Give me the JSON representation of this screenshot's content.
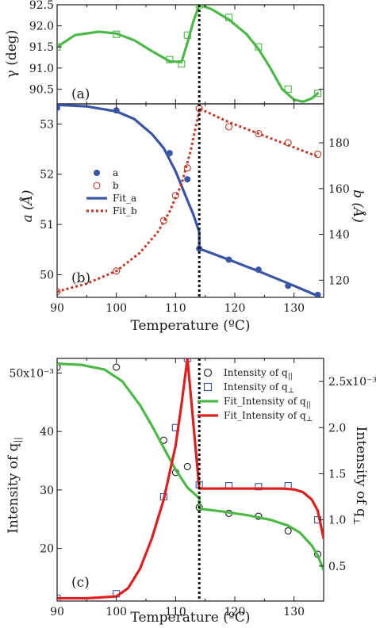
{
  "chart_data": [
    {
      "panel": "(a)",
      "type": "line",
      "xlabel": "",
      "ylabel": "γ (deg)",
      "xlim": [
        90,
        135
      ],
      "ylim": [
        90.15,
        92.5
      ],
      "yticks": [
        90.5,
        91.0,
        91.5,
        92.0,
        92.5
      ],
      "ytick_labels": [
        "90.5",
        "91.0",
        "91.5",
        "92.0",
        "92.5"
      ],
      "transition_x": 114,
      "series": [
        {
          "name": "",
          "style": "markers",
          "marker": "square-open",
          "color": "#4db848",
          "x": [
            90,
            100,
            109,
            111,
            112,
            114,
            119,
            124,
            129,
            134
          ],
          "y": [
            91.5,
            91.8,
            91.2,
            91.1,
            91.78,
            92.5,
            92.2,
            91.5,
            90.5,
            90.4
          ]
        },
        {
          "name": "",
          "style": "line",
          "color": "#4db848",
          "x": [
            90,
            93,
            97,
            100,
            103,
            106,
            109,
            111,
            112,
            113,
            114,
            116,
            119,
            122,
            124,
            126,
            128,
            130,
            131.5,
            133,
            134
          ],
          "y": [
            91.5,
            91.78,
            91.86,
            91.82,
            91.66,
            91.4,
            91.16,
            91.14,
            91.6,
            92.1,
            92.5,
            92.4,
            92.15,
            91.8,
            91.45,
            91.0,
            90.5,
            90.25,
            90.2,
            90.28,
            90.4
          ]
        }
      ]
    },
    {
      "panel": "(b)",
      "type": "line",
      "xlabel": "Temperature (ºC)",
      "ylabel": "a (Å)",
      "ylabel_right": "b (Å)",
      "xlim": [
        90,
        135
      ],
      "ylim": [
        49.55,
        53.4
      ],
      "ylim_right": [
        112.5,
        197
      ],
      "xticks": [
        90,
        100,
        110,
        120,
        130
      ],
      "xtick_labels": [
        "90",
        "100",
        "110",
        "120",
        "130"
      ],
      "yticks": [
        50,
        51,
        52,
        53
      ],
      "ytick_labels": [
        "50",
        "51",
        "52",
        "53"
      ],
      "yticks_right": [
        120,
        140,
        160,
        180
      ],
      "ytick_labels_right": [
        "120",
        "140",
        "160",
        "180"
      ],
      "transition_x": 114,
      "legend": {
        "position": "center-left",
        "entries": [
          {
            "label": "a",
            "kind": "marker-filled",
            "color": "#3a55a4"
          },
          {
            "label": "b",
            "kind": "marker-open",
            "color": "#c0392b"
          },
          {
            "label": "Fit_a",
            "kind": "line-solid",
            "color": "#3a55a4"
          },
          {
            "label": "Fit_b",
            "kind": "line-dotted",
            "color": "#c0392b"
          }
        ]
      },
      "series": [
        {
          "name": "a",
          "axis": "left",
          "style": "markers",
          "marker": "circle-filled",
          "color": "#3a55a4",
          "x": [
            90,
            100,
            109,
            112,
            114,
            119,
            124,
            129,
            134
          ],
          "y": [
            53.32,
            53.27,
            52.42,
            51.9,
            50.52,
            50.3,
            50.1,
            49.78,
            49.6
          ]
        },
        {
          "name": "b",
          "axis": "right",
          "style": "markers",
          "marker": "circle-open",
          "color": "#c0392b",
          "x": [
            90,
            100,
            108,
            110,
            112,
            114,
            119,
            124,
            129,
            134
          ],
          "y": [
            115,
            124,
            146,
            157,
            169,
            195,
            187,
            184,
            180,
            175
          ]
        },
        {
          "name": "Fit_a",
          "axis": "left",
          "style": "line-solid",
          "color": "#3a55a4",
          "x": [
            90,
            95,
            100,
            103,
            106,
            108,
            110,
            112,
            113,
            114,
            114,
            119,
            124,
            129,
            134
          ],
          "y": [
            53.38,
            53.35,
            53.25,
            53.1,
            52.8,
            52.52,
            52.06,
            51.48,
            51.2,
            50.85,
            50.52,
            50.3,
            50.07,
            49.83,
            49.58
          ]
        },
        {
          "name": "Fit_b",
          "axis": "right",
          "style": "line-dotted",
          "color": "#c0392b",
          "x": [
            90,
            95,
            100,
            104,
            107,
            109,
            111,
            112.5,
            114,
            114,
            119,
            124,
            129,
            134
          ],
          "y": [
            115,
            118.5,
            124,
            132,
            141,
            150,
            162,
            176,
            194,
            195,
            189,
            184,
            179,
            174
          ]
        }
      ]
    },
    {
      "panel": "(c)",
      "type": "line",
      "xlabel": "Temperature (ºC)",
      "ylabel": "Intensity of q",
      "ylabel_sub": "||",
      "ylabel_right": "Intensity of q",
      "ylabel_right_sub": "⊥",
      "xlim": [
        90,
        135
      ],
      "ylim": [
        11,
        52.5
      ],
      "ylim_right": [
        0.12,
        2.75
      ],
      "xticks": [
        90,
        100,
        110,
        120,
        130
      ],
      "xtick_labels": [
        "90",
        "100",
        "110",
        "120",
        "130"
      ],
      "yticks": [
        20,
        30,
        40,
        50
      ],
      "ytick_labels": [
        "20",
        "30",
        "40",
        "50x10⁻³"
      ],
      "yticks_right": [
        0.5,
        1.0,
        1.5,
        2.0,
        2.5
      ],
      "ytick_labels_right": [
        "0.5",
        "1.0",
        "1.5",
        "2.0",
        "2.5x10⁻³"
      ],
      "transition_x": 114,
      "legend": {
        "position": "top-right",
        "entries": [
          {
            "label": "Intensity of q",
            "sub": "||",
            "kind": "marker-open-circle",
            "color": "#1a1a1a"
          },
          {
            "label": "Intensity of q",
            "sub": "⊥",
            "kind": "marker-open-square",
            "color": "#3a55a4"
          },
          {
            "label": "Fit_Intensity of q",
            "sub": "||",
            "kind": "line-solid",
            "color": "#4db848"
          },
          {
            "label": "Fit_Intensity of q",
            "sub": "⊥",
            "kind": "line-solid",
            "color": "#e02020"
          }
        ]
      },
      "series": [
        {
          "name": "Intensity of q||",
          "axis": "left",
          "style": "markers",
          "marker": "circle-open",
          "color": "#1a1a1a",
          "x": [
            90,
            100,
            108,
            110,
            112,
            114,
            119,
            124,
            129,
            134
          ],
          "y": [
            51,
            51,
            38.5,
            33,
            34,
            27,
            26,
            25.5,
            23,
            19
          ]
        },
        {
          "name": "Intensity of q⊥",
          "axis": "right",
          "style": "markers",
          "marker": "square-open",
          "color": "#3a55a4",
          "x": [
            90,
            100,
            108,
            110,
            112,
            114,
            119,
            124,
            129,
            134
          ],
          "y": [
            0.15,
            0.2,
            1.25,
            2.0,
            2.75,
            1.38,
            1.37,
            1.36,
            1.37,
            1.0
          ]
        },
        {
          "name": "Fit_Intensity of q||",
          "axis": "left",
          "style": "line-solid",
          "color": "#4db848",
          "x": [
            90,
            94,
            98,
            101,
            104,
            106,
            108,
            110,
            112,
            114,
            114,
            118,
            122,
            126,
            129,
            131,
            133,
            134,
            135
          ],
          "y": [
            51.6,
            51.4,
            50.6,
            48.6,
            44.5,
            41,
            37.2,
            33.5,
            30.4,
            28.6,
            26.8,
            26.3,
            25.7,
            24.9,
            23.9,
            22.7,
            20.5,
            18.8,
            16.3
          ]
        },
        {
          "name": "Fit_Intensity of q⊥",
          "axis": "right",
          "style": "line-solid",
          "color": "#e02020",
          "x": [
            90,
            95,
            100,
            102,
            104,
            106,
            108,
            110,
            111,
            112,
            114,
            118,
            122,
            126,
            128,
            130,
            131.5,
            133,
            134,
            135
          ],
          "y": [
            0.15,
            0.15,
            0.17,
            0.26,
            0.47,
            0.8,
            1.22,
            1.8,
            2.25,
            2.75,
            1.34,
            1.34,
            1.34,
            1.34,
            1.34,
            1.33,
            1.3,
            1.22,
            1.1,
            0.8
          ]
        }
      ]
    }
  ],
  "panel_labels": {
    "a": "(a)",
    "b": "(b)",
    "c": "(c)"
  }
}
